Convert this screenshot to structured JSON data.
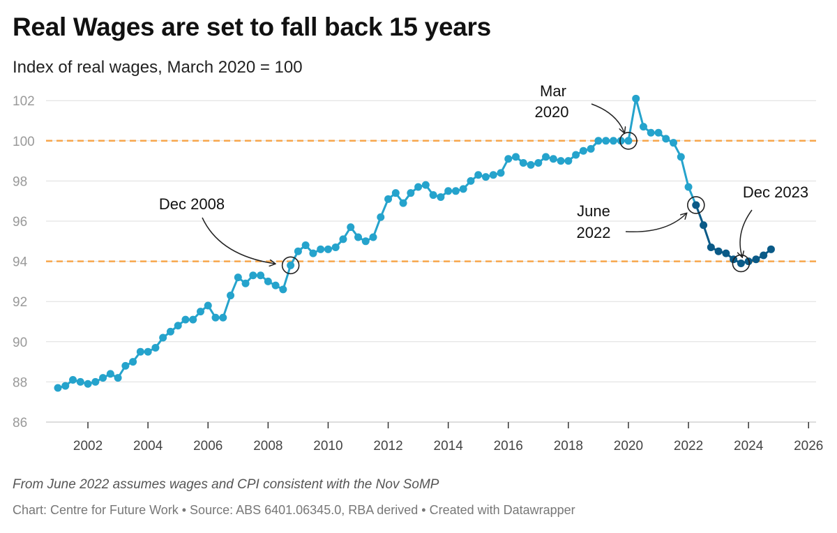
{
  "header": {
    "title": "Real Wages are set to fall back 15 years",
    "subtitle": "Index of real wages, March 2020 = 100"
  },
  "footer": {
    "note": "From June 2022 assumes wages and CPI consistent with the Nov SoMP",
    "credit": "Chart: Centre for Future Work • Source: ABS 6401.06345.0, RBA derived • Created with Datawrapper"
  },
  "colors": {
    "actual": "#25a3cc",
    "projected": "#0a5a87",
    "reference": "#f7a64b",
    "grid": "#dddddd"
  },
  "chart_data": {
    "type": "line",
    "title": "Real Wages are set to fall back 15 years",
    "subtitle": "Index of real wages, March 2020 = 100",
    "xlabel": "",
    "ylabel": "",
    "xlim": [
      2000.6,
      2026.4
    ],
    "ylim": [
      86,
      102.4
    ],
    "yticks": [
      86,
      88,
      90,
      92,
      94,
      96,
      98,
      100,
      102
    ],
    "xticks": [
      2002,
      2004,
      2006,
      2008,
      2010,
      2012,
      2014,
      2016,
      2018,
      2020,
      2022,
      2024,
      2026
    ],
    "grid": true,
    "reference_lines": [
      100,
      94
    ],
    "series": [
      {
        "kind": "actual",
        "points": [
          [
            2001.0,
            87.7
          ],
          [
            2001.25,
            87.8
          ],
          [
            2001.5,
            88.1
          ],
          [
            2001.75,
            88.0
          ],
          [
            2002.0,
            87.9
          ],
          [
            2002.25,
            88.0
          ],
          [
            2002.5,
            88.2
          ],
          [
            2002.75,
            88.4
          ],
          [
            2003.0,
            88.2
          ],
          [
            2003.25,
            88.8
          ],
          [
            2003.5,
            89.0
          ],
          [
            2003.75,
            89.5
          ],
          [
            2004.0,
            89.5
          ],
          [
            2004.25,
            89.7
          ],
          [
            2004.5,
            90.2
          ],
          [
            2004.75,
            90.5
          ],
          [
            2005.0,
            90.8
          ],
          [
            2005.25,
            91.1
          ],
          [
            2005.5,
            91.1
          ],
          [
            2005.75,
            91.5
          ],
          [
            2006.0,
            91.8
          ],
          [
            2006.25,
            91.2
          ],
          [
            2006.5,
            91.2
          ],
          [
            2006.75,
            92.3
          ],
          [
            2007.0,
            93.2
          ],
          [
            2007.25,
            92.9
          ],
          [
            2007.5,
            93.3
          ],
          [
            2007.75,
            93.3
          ],
          [
            2008.0,
            93.0
          ],
          [
            2008.25,
            92.8
          ],
          [
            2008.5,
            92.6
          ],
          [
            2008.75,
            93.8
          ],
          [
            2009.0,
            94.5
          ],
          [
            2009.25,
            94.8
          ],
          [
            2009.5,
            94.4
          ],
          [
            2009.75,
            94.6
          ],
          [
            2010.0,
            94.6
          ],
          [
            2010.25,
            94.7
          ],
          [
            2010.5,
            95.1
          ],
          [
            2010.75,
            95.7
          ],
          [
            2011.0,
            95.2
          ],
          [
            2011.25,
            95.0
          ],
          [
            2011.5,
            95.2
          ],
          [
            2011.75,
            96.2
          ],
          [
            2012.0,
            97.1
          ],
          [
            2012.25,
            97.4
          ],
          [
            2012.5,
            96.9
          ],
          [
            2012.75,
            97.4
          ],
          [
            2013.0,
            97.7
          ],
          [
            2013.25,
            97.8
          ],
          [
            2013.5,
            97.3
          ],
          [
            2013.75,
            97.2
          ],
          [
            2014.0,
            97.5
          ],
          [
            2014.25,
            97.5
          ],
          [
            2014.5,
            97.6
          ],
          [
            2014.75,
            98.0
          ],
          [
            2015.0,
            98.3
          ],
          [
            2015.25,
            98.2
          ],
          [
            2015.5,
            98.3
          ],
          [
            2015.75,
            98.4
          ],
          [
            2016.0,
            99.1
          ],
          [
            2016.25,
            99.2
          ],
          [
            2016.5,
            98.9
          ],
          [
            2016.75,
            98.8
          ],
          [
            2017.0,
            98.9
          ],
          [
            2017.25,
            99.2
          ],
          [
            2017.5,
            99.1
          ],
          [
            2017.75,
            99.0
          ],
          [
            2018.0,
            99.0
          ],
          [
            2018.25,
            99.3
          ],
          [
            2018.5,
            99.5
          ],
          [
            2018.75,
            99.6
          ],
          [
            2019.0,
            100.0
          ],
          [
            2019.25,
            100.0
          ],
          [
            2019.5,
            100.0
          ],
          [
            2019.75,
            100.0
          ],
          [
            2020.0,
            100.0
          ],
          [
            2020.25,
            102.1
          ],
          [
            2020.5,
            100.7
          ],
          [
            2020.75,
            100.4
          ],
          [
            2021.0,
            100.4
          ],
          [
            2021.25,
            100.1
          ],
          [
            2021.5,
            99.9
          ],
          [
            2021.75,
            99.2
          ],
          [
            2022.0,
            97.7
          ],
          [
            2022.25,
            96.8
          ]
        ]
      },
      {
        "kind": "projected",
        "points": [
          [
            2022.25,
            96.8
          ],
          [
            2022.5,
            95.8
          ],
          [
            2022.75,
            94.7
          ],
          [
            2023.0,
            94.5
          ],
          [
            2023.25,
            94.4
          ],
          [
            2023.5,
            94.1
          ],
          [
            2023.75,
            93.9
          ],
          [
            2024.0,
            94.0
          ],
          [
            2024.25,
            94.1
          ],
          [
            2024.5,
            94.3
          ],
          [
            2024.75,
            94.6
          ]
        ]
      }
    ],
    "annotations": [
      {
        "id": "dec2008",
        "lines": [
          "Dec 2008"
        ],
        "x": 2008.75,
        "y": 93.8
      },
      {
        "id": "mar2020",
        "lines": [
          "Mar",
          "2020"
        ],
        "x": 2020.0,
        "y": 100.0
      },
      {
        "id": "jun2022",
        "lines": [
          "June",
          "2022"
        ],
        "x": 2022.25,
        "y": 96.8
      },
      {
        "id": "dec2023",
        "lines": [
          "Dec 2023"
        ],
        "x": 2023.75,
        "y": 93.9
      }
    ]
  }
}
